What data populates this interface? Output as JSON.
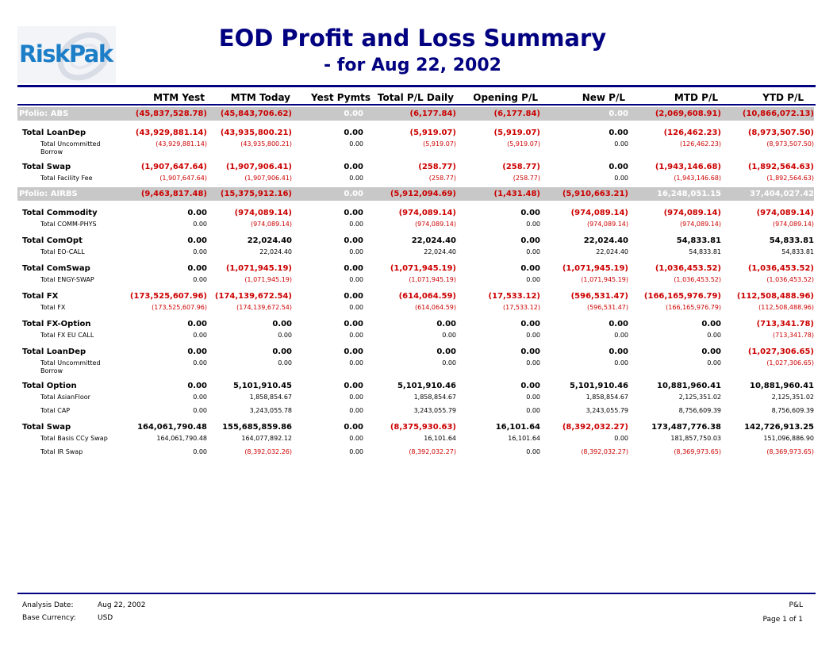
{
  "header": {
    "logo_text": "RiskPak",
    "title": "EOD Profit and Loss Summary",
    "subtitle": "- for Aug 22, 2002"
  },
  "columns": [
    "MTM Yest",
    "MTM Today",
    "Yest Pymts",
    "Total P/L Daily",
    "Opening P/L",
    "New P/L",
    "MTD P/L",
    "YTD P/L"
  ],
  "colors": {
    "title": "#000080",
    "negative": "#cc0000",
    "portfolio_band": "#c8c8c8",
    "logo": "#1d7ec8"
  },
  "rows": [
    {
      "type": "pf",
      "label": "Pfolio:  ABS",
      "values": [
        "(45,837,528.78)",
        "(45,843,706.62)",
        "0.00",
        "(6,177.84)",
        "(6,177.84)",
        "0.00",
        "(2,069,608.91)",
        "(10,866,072.13)"
      ]
    },
    {
      "type": "gap"
    },
    {
      "type": "tot",
      "label": "Total  LoanDep",
      "values": [
        "(43,929,881.14)",
        "(43,935,800.21)",
        "0.00",
        "(5,919.07)",
        "(5,919.07)",
        "0.00",
        "(126,462.23)",
        "(8,973,507.50)"
      ]
    },
    {
      "type": "det",
      "label": "Total Uncommitted Borrow",
      "tall": true,
      "values": [
        "(43,929,881.14)",
        "(43,935,800.21)",
        "0.00",
        "(5,919.07)",
        "(5,919.07)",
        "0.00",
        "(126,462.23)",
        "(8,973,507.50)"
      ]
    },
    {
      "type": "tot",
      "label": "Total  Swap",
      "values": [
        "(1,907,647.64)",
        "(1,907,906.41)",
        "0.00",
        "(258.77)",
        "(258.77)",
        "0.00",
        "(1,943,146.68)",
        "(1,892,564.63)"
      ]
    },
    {
      "type": "det",
      "label": "Total Facility Fee",
      "values": [
        "(1,907,647.64)",
        "(1,907,906.41)",
        "0.00",
        "(258.77)",
        "(258.77)",
        "0.00",
        "(1,943,146.68)",
        "(1,892,564.63)"
      ]
    },
    {
      "type": "pf",
      "label": "Pfolio:  AIRBS",
      "values": [
        "(9,463,817.48)",
        "(15,375,912.16)",
        "0.00",
        "(5,912,094.69)",
        "(1,431.48)",
        "(5,910,663.21)",
        "16,248,051.15",
        "37,404,027.42"
      ]
    },
    {
      "type": "gap"
    },
    {
      "type": "tot",
      "label": "Total  Commodity",
      "values": [
        "0.00",
        "(974,089.14)",
        "0.00",
        "(974,089.14)",
        "0.00",
        "(974,089.14)",
        "(974,089.14)",
        "(974,089.14)"
      ]
    },
    {
      "type": "det",
      "label": "Total COMM-PHYS",
      "values": [
        "0.00",
        "(974,089.14)",
        "0.00",
        "(974,089.14)",
        "0.00",
        "(974,089.14)",
        "(974,089.14)",
        "(974,089.14)"
      ]
    },
    {
      "type": "tot",
      "label": "Total  ComOpt",
      "values": [
        "0.00",
        "22,024.40",
        "0.00",
        "22,024.40",
        "0.00",
        "22,024.40",
        "54,833.81",
        "54,833.81"
      ]
    },
    {
      "type": "det",
      "label": "Total EO-CALL",
      "values": [
        "0.00",
        "22,024.40",
        "0.00",
        "22,024.40",
        "0.00",
        "22,024.40",
        "54,833.81",
        "54,833.81"
      ]
    },
    {
      "type": "tot",
      "label": "Total  ComSwap",
      "values": [
        "0.00",
        "(1,071,945.19)",
        "0.00",
        "(1,071,945.19)",
        "0.00",
        "(1,071,945.19)",
        "(1,036,453.52)",
        "(1,036,453.52)"
      ]
    },
    {
      "type": "det",
      "label": "Total ENGY-SWAP",
      "values": [
        "0.00",
        "(1,071,945.19)",
        "0.00",
        "(1,071,945.19)",
        "0.00",
        "(1,071,945.19)",
        "(1,036,453.52)",
        "(1,036,453.52)"
      ]
    },
    {
      "type": "tot",
      "label": "Total  FX",
      "values": [
        "(173,525,607.96)",
        "(174,139,672.54)",
        "0.00",
        "(614,064.59)",
        "(17,533.12)",
        "(596,531.47)",
        "(166,165,976.79)",
        "(112,508,488.96)"
      ]
    },
    {
      "type": "det",
      "label": "Total FX",
      "values": [
        "(173,525,607.96)",
        "(174,139,672.54)",
        "0.00",
        "(614,064.59)",
        "(17,533.12)",
        "(596,531.47)",
        "(166,165,976.79)",
        "(112,508,488.96)"
      ]
    },
    {
      "type": "tot",
      "label": "Total  FX-Option",
      "values": [
        "0.00",
        "0.00",
        "0.00",
        "0.00",
        "0.00",
        "0.00",
        "0.00",
        "(713,341.78)"
      ]
    },
    {
      "type": "det",
      "label": "Total FX EU CALL",
      "values": [
        "0.00",
        "0.00",
        "0.00",
        "0.00",
        "0.00",
        "0.00",
        "0.00",
        "(713,341.78)"
      ]
    },
    {
      "type": "tot",
      "label": "Total  LoanDep",
      "values": [
        "0.00",
        "0.00",
        "0.00",
        "0.00",
        "0.00",
        "0.00",
        "0.00",
        "(1,027,306.65)"
      ]
    },
    {
      "type": "det",
      "label": "Total Uncommitted Borrow",
      "tall": true,
      "values": [
        "0.00",
        "0.00",
        "0.00",
        "0.00",
        "0.00",
        "0.00",
        "0.00",
        "(1,027,306.65)"
      ]
    },
    {
      "type": "tot",
      "label": "Total  Option",
      "values": [
        "0.00",
        "5,101,910.45",
        "0.00",
        "5,101,910.46",
        "0.00",
        "5,101,910.46",
        "10,881,960.41",
        "10,881,960.41"
      ]
    },
    {
      "type": "det",
      "label": "Total AsianFloor",
      "values": [
        "0.00",
        "1,858,854.67",
        "0.00",
        "1,858,854.67",
        "0.00",
        "1,858,854.67",
        "2,125,351.02",
        "2,125,351.02"
      ]
    },
    {
      "type": "det",
      "label": "Total CAP",
      "values": [
        "0.00",
        "3,243,055.78",
        "0.00",
        "3,243,055.79",
        "0.00",
        "3,243,055.79",
        "8,756,609.39",
        "8,756,609.39"
      ]
    },
    {
      "type": "tot",
      "label": "Total  Swap",
      "values": [
        "164,061,790.48",
        "155,685,859.86",
        "0.00",
        "(8,375,930.63)",
        "16,101.64",
        "(8,392,032.27)",
        "173,487,776.38",
        "142,726,913.25"
      ]
    },
    {
      "type": "det",
      "label": "Total Basis CCy Swap",
      "values": [
        "164,061,790.48",
        "164,077,892.12",
        "0.00",
        "16,101.64",
        "16,101.64",
        "0.00",
        "181,857,750.03",
        "151,096,886.90"
      ]
    },
    {
      "type": "det",
      "label": "Total IR Swap",
      "values": [
        "0.00",
        "(8,392,032.26)",
        "0.00",
        "(8,392,032.27)",
        "0.00",
        "(8,392,032.27)",
        "(8,369,973.65)",
        "(8,369,973.65)"
      ]
    }
  ],
  "footer": {
    "analysis_date_label": "Analysis Date:",
    "analysis_date_value": "Aug 22, 2002",
    "base_currency_label": "Base Currency:",
    "base_currency_value": "USD",
    "report_name": "P&L",
    "page": "Page 1 of 1"
  }
}
